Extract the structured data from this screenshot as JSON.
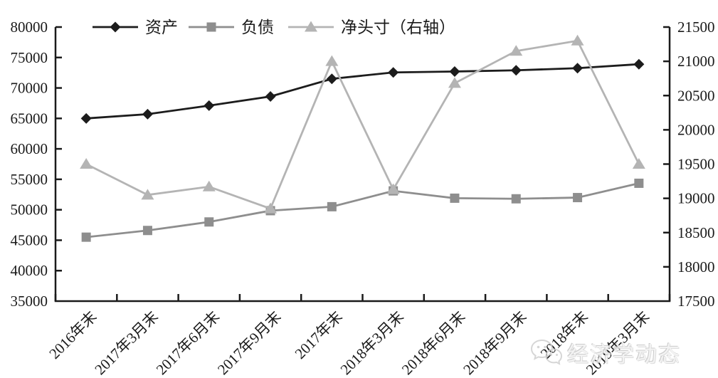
{
  "watermark": {
    "text": "经济学动态",
    "icon": "wechat-icon"
  },
  "chart_data": {
    "type": "line",
    "title": "",
    "categories": [
      "2016年末",
      "2017年3月末",
      "2017年6月末",
      "2017年9月末",
      "2017年末",
      "2018年3月末",
      "2018年6月末",
      "2018年9月末",
      "2018年末",
      "2019年3月末"
    ],
    "series": [
      {
        "key": "assets",
        "name": "资产",
        "axis": "left",
        "marker": "diamond",
        "color": "#1c1c1c",
        "values": [
          65000,
          65700,
          67100,
          68600,
          71500,
          72550,
          72700,
          72900,
          73250,
          73900
        ]
      },
      {
        "key": "liabilities",
        "name": "负债",
        "axis": "left",
        "marker": "square",
        "color": "#8e8e8e",
        "values": [
          45500,
          46600,
          48000,
          49850,
          50500,
          53100,
          51900,
          51800,
          52000,
          54350
        ]
      },
      {
        "key": "net-position",
        "name": "净头寸（右轴）",
        "axis": "right",
        "marker": "triangle",
        "color": "#b4b4b4",
        "values": [
          19500,
          19050,
          19170,
          18850,
          21000,
          19130,
          20680,
          21150,
          21300,
          19500
        ]
      }
    ],
    "left_axis": {
      "min": 35000,
      "max": 80000,
      "step": 5000,
      "ticks": [
        "80000",
        "75000",
        "70000",
        "65000",
        "60000",
        "55000",
        "50000",
        "45000",
        "40000",
        "35000"
      ]
    },
    "right_axis": {
      "min": 17500,
      "max": 21500,
      "step": 500,
      "ticks": [
        "21500",
        "21000",
        "20500",
        "20000",
        "19500",
        "19000",
        "18500",
        "18000",
        "17500"
      ]
    },
    "legend_position": "top",
    "grid": false,
    "axis_color": "#1a1a1a"
  }
}
